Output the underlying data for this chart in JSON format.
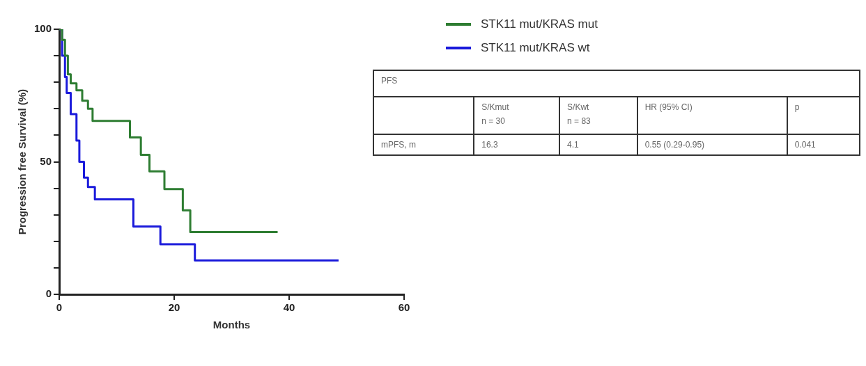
{
  "chart_data": {
    "type": "step",
    "xlabel": "Months",
    "ylabel": "Progression free Survival (%)",
    "xlim": [
      0,
      60
    ],
    "xticks": [
      0,
      20,
      40,
      60
    ],
    "ylim": [
      0,
      100
    ],
    "yticks": [
      0,
      {
        "value": 10,
        "label": null
      },
      {
        "value": 20,
        "label": null
      },
      {
        "value": 30,
        "label": null
      },
      {
        "value": 40,
        "label": null
      },
      50,
      {
        "value": 60,
        "label": null
      },
      {
        "value": 70,
        "label": null
      },
      {
        "value": 80,
        "label": null
      },
      {
        "value": 90,
        "label": null
      },
      100
    ],
    "grid": false,
    "legend": "top right",
    "marker": "none",
    "line_style": "solid",
    "series": [
      {
        "name": "STK11 mut/KRAS mut",
        "color": "#2e7d32",
        "x": [
          0,
          0.5,
          1,
          1.5,
          2,
          3,
          4,
          5,
          5.8,
          12.3,
          14.2,
          15.7,
          18.3,
          21.5,
          22.8,
          38
        ],
        "values": [
          100,
          96,
          90,
          83,
          79.6,
          77,
          73,
          70,
          65.4,
          59.2,
          52.6,
          46.4,
          39.7,
          31.7,
          23.5,
          23.5
        ]
      },
      {
        "name": "STK11 mut/KRAS wt",
        "color": "#1a1adb",
        "x": [
          0,
          0.5,
          1,
          1.3,
          2,
          3,
          3.5,
          4.3,
          5,
          6.2,
          12.9,
          17.6,
          23.6,
          48.6
        ],
        "values": [
          100,
          90,
          82,
          76,
          68,
          58,
          50,
          44,
          40.5,
          35.8,
          25.6,
          18.9,
          12.8,
          12.8
        ]
      }
    ],
    "annotations": [
      "PFS",
      "S/Kmut\nn = 30",
      "S/Kwt\nn = 83",
      "HR (95% CI)",
      "p",
      "mPFS, m",
      "16.3",
      "4.1",
      "0.55 (0.29-0.95)",
      "0.041"
    ]
  }
}
